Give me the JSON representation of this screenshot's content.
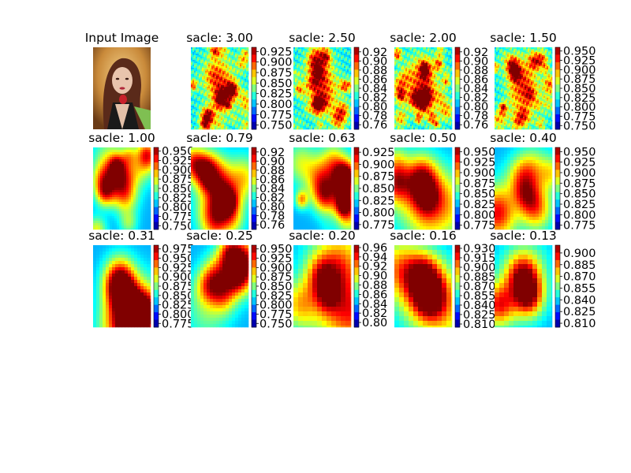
{
  "figure": {
    "panels": [
      {
        "title": "Input Image",
        "kind": "image"
      },
      {
        "title": "sacle: 3.00",
        "kind": "heatmap",
        "colorbar_ticks": [
          "0.925",
          "0.900",
          "0.875",
          "0.850",
          "0.825",
          "0.800",
          "0.775",
          "0.750"
        ],
        "vmin": 0.74,
        "vmax": 0.935,
        "smooth": 0.6,
        "seed": 3,
        "detail": "edges"
      },
      {
        "title": "sacle: 2.50",
        "kind": "heatmap",
        "colorbar_ticks": [
          "0.92",
          "0.90",
          "0.88",
          "0.86",
          "0.84",
          "0.82",
          "0.80",
          "0.78",
          "0.76"
        ],
        "vmin": 0.75,
        "vmax": 0.93,
        "smooth": 0.6,
        "seed": 7,
        "detail": "edges"
      },
      {
        "title": "sacle: 2.00",
        "kind": "heatmap",
        "colorbar_ticks": [
          "0.92",
          "0.90",
          "0.88",
          "0.86",
          "0.84",
          "0.82",
          "0.80",
          "0.78",
          "0.76"
        ],
        "vmin": 0.75,
        "vmax": 0.93,
        "smooth": 0.6,
        "seed": 11,
        "detail": "edges"
      },
      {
        "title": "sacle: 1.50",
        "kind": "heatmap",
        "colorbar_ticks": [
          "0.950",
          "0.925",
          "0.900",
          "0.875",
          "0.850",
          "0.825",
          "0.800",
          "0.775",
          "0.750"
        ],
        "vmin": 0.74,
        "vmax": 0.96,
        "smooth": 0.8,
        "seed": 13,
        "detail": "edges"
      },
      {
        "title": "sacle: 1.00",
        "kind": "heatmap",
        "colorbar_ticks": [
          "0.950",
          "0.925",
          "0.900",
          "0.875",
          "0.850",
          "0.825",
          "0.800",
          "0.775",
          "0.750"
        ],
        "vmin": 0.74,
        "vmax": 0.96,
        "smooth": 1.2,
        "seed": 17,
        "detail": "mid"
      },
      {
        "title": "sacle: 0.79",
        "kind": "heatmap",
        "colorbar_ticks": [
          "0.92",
          "0.90",
          "0.88",
          "0.86",
          "0.84",
          "0.82",
          "0.80",
          "0.78",
          "0.76"
        ],
        "vmin": 0.75,
        "vmax": 0.93,
        "smooth": 1.4,
        "seed": 19,
        "detail": "mid"
      },
      {
        "title": "sacle: 0.63",
        "kind": "heatmap",
        "colorbar_ticks": [
          "0.925",
          "0.900",
          "0.875",
          "0.850",
          "0.825",
          "0.800",
          "0.775"
        ],
        "vmin": 0.765,
        "vmax": 0.935,
        "smooth": 1.8,
        "seed": 23,
        "detail": "mid"
      },
      {
        "title": "sacle: 0.50",
        "kind": "heatmap",
        "colorbar_ticks": [
          "0.950",
          "0.925",
          "0.900",
          "0.875",
          "0.850",
          "0.825",
          "0.800",
          "0.775"
        ],
        "vmin": 0.765,
        "vmax": 0.96,
        "smooth": 2.2,
        "seed": 29,
        "detail": "coarse"
      },
      {
        "title": "sacle: 0.40",
        "kind": "heatmap",
        "colorbar_ticks": [
          "0.950",
          "0.925",
          "0.900",
          "0.875",
          "0.850",
          "0.825",
          "0.800",
          "0.775"
        ],
        "vmin": 0.765,
        "vmax": 0.96,
        "smooth": 2.6,
        "seed": 31,
        "detail": "coarse"
      },
      {
        "title": "sacle: 0.31",
        "kind": "heatmap",
        "colorbar_ticks": [
          "0.975",
          "0.950",
          "0.925",
          "0.900",
          "0.875",
          "0.850",
          "0.825",
          "0.800",
          "0.775"
        ],
        "vmin": 0.765,
        "vmax": 0.985,
        "smooth": 3.0,
        "seed": 37,
        "detail": "coarse"
      },
      {
        "title": "sacle: 0.25",
        "kind": "heatmap",
        "colorbar_ticks": [
          "0.950",
          "0.925",
          "0.900",
          "0.875",
          "0.850",
          "0.825",
          "0.800",
          "0.775",
          "0.750"
        ],
        "vmin": 0.74,
        "vmax": 0.96,
        "smooth": 3.4,
        "seed": 41,
        "detail": "coarse"
      },
      {
        "title": "sacle: 0.20",
        "kind": "heatmap",
        "colorbar_ticks": [
          "0.96",
          "0.94",
          "0.92",
          "0.90",
          "0.88",
          "0.86",
          "0.84",
          "0.82",
          "0.80"
        ],
        "vmin": 0.79,
        "vmax": 0.965,
        "smooth": 4.0,
        "seed": 43,
        "detail": "blocky"
      },
      {
        "title": "sacle: 0.16",
        "kind": "heatmap",
        "colorbar_ticks": [
          "0.930",
          "0.915",
          "0.900",
          "0.885",
          "0.870",
          "0.855",
          "0.840",
          "0.825",
          "0.810"
        ],
        "vmin": 0.805,
        "vmax": 0.935,
        "smooth": 4.5,
        "seed": 47,
        "detail": "blocky"
      },
      {
        "title": "sacle: 0.13",
        "kind": "heatmap",
        "colorbar_ticks": [
          "0.900",
          "0.885",
          "0.870",
          "0.855",
          "0.840",
          "0.825",
          "0.810"
        ],
        "vmin": 0.805,
        "vmax": 0.91,
        "smooth": 5.0,
        "seed": 53,
        "detail": "blocky"
      }
    ]
  },
  "chart_data": {
    "type": "heatmap",
    "title": "",
    "subplots": [
      {
        "title": "Input Image",
        "type": "image"
      },
      {
        "title": "sacle: 3.00",
        "colorbar": {
          "min": 0.74,
          "max": 0.935,
          "ticks": [
            0.925,
            0.9,
            0.875,
            0.85,
            0.825,
            0.8,
            0.775,
            0.75
          ]
        }
      },
      {
        "title": "sacle: 2.50",
        "colorbar": {
          "min": 0.75,
          "max": 0.93,
          "ticks": [
            0.92,
            0.9,
            0.88,
            0.86,
            0.84,
            0.82,
            0.8,
            0.78,
            0.76
          ]
        }
      },
      {
        "title": "sacle: 2.00",
        "colorbar": {
          "min": 0.75,
          "max": 0.93,
          "ticks": [
            0.92,
            0.9,
            0.88,
            0.86,
            0.84,
            0.82,
            0.8,
            0.78,
            0.76
          ]
        }
      },
      {
        "title": "sacle: 1.50",
        "colorbar": {
          "min": 0.74,
          "max": 0.96,
          "ticks": [
            0.95,
            0.925,
            0.9,
            0.875,
            0.85,
            0.825,
            0.8,
            0.775,
            0.75
          ]
        }
      },
      {
        "title": "sacle: 1.00",
        "colorbar": {
          "min": 0.74,
          "max": 0.96,
          "ticks": [
            0.95,
            0.925,
            0.9,
            0.875,
            0.85,
            0.825,
            0.8,
            0.775,
            0.75
          ]
        }
      },
      {
        "title": "sacle: 0.79",
        "colorbar": {
          "min": 0.75,
          "max": 0.93,
          "ticks": [
            0.92,
            0.9,
            0.88,
            0.86,
            0.84,
            0.82,
            0.8,
            0.78,
            0.76
          ]
        }
      },
      {
        "title": "sacle: 0.63",
        "colorbar": {
          "min": 0.765,
          "max": 0.935,
          "ticks": [
            0.925,
            0.9,
            0.875,
            0.85,
            0.825,
            0.8,
            0.775
          ]
        }
      },
      {
        "title": "sacle: 0.50",
        "colorbar": {
          "min": 0.765,
          "max": 0.96,
          "ticks": [
            0.95,
            0.925,
            0.9,
            0.875,
            0.85,
            0.825,
            0.8,
            0.775
          ]
        }
      },
      {
        "title": "sacle: 0.40",
        "colorbar": {
          "min": 0.765,
          "max": 0.96,
          "ticks": [
            0.95,
            0.925,
            0.9,
            0.875,
            0.85,
            0.825,
            0.8,
            0.775
          ]
        }
      },
      {
        "title": "sacle: 0.31",
        "colorbar": {
          "min": 0.765,
          "max": 0.985,
          "ticks": [
            0.975,
            0.95,
            0.925,
            0.9,
            0.875,
            0.85,
            0.825,
            0.8,
            0.775
          ]
        }
      },
      {
        "title": "sacle: 0.25",
        "colorbar": {
          "min": 0.74,
          "max": 0.96,
          "ticks": [
            0.95,
            0.925,
            0.9,
            0.875,
            0.85,
            0.825,
            0.8,
            0.775,
            0.75
          ]
        }
      },
      {
        "title": "sacle: 0.20",
        "colorbar": {
          "min": 0.79,
          "max": 0.965,
          "ticks": [
            0.96,
            0.94,
            0.92,
            0.9,
            0.88,
            0.86,
            0.84,
            0.82,
            0.8
          ]
        }
      },
      {
        "title": "sacle: 0.16",
        "colorbar": {
          "min": 0.805,
          "max": 0.935,
          "ticks": [
            0.93,
            0.915,
            0.9,
            0.885,
            0.87,
            0.855,
            0.84,
            0.825,
            0.81
          ]
        }
      },
      {
        "title": "sacle: 0.13",
        "colorbar": {
          "min": 0.805,
          "max": 0.91,
          "ticks": [
            0.9,
            0.885,
            0.87,
            0.855,
            0.84,
            0.825,
            0.81
          ]
        }
      }
    ],
    "colormap": "jet",
    "grid": false
  }
}
